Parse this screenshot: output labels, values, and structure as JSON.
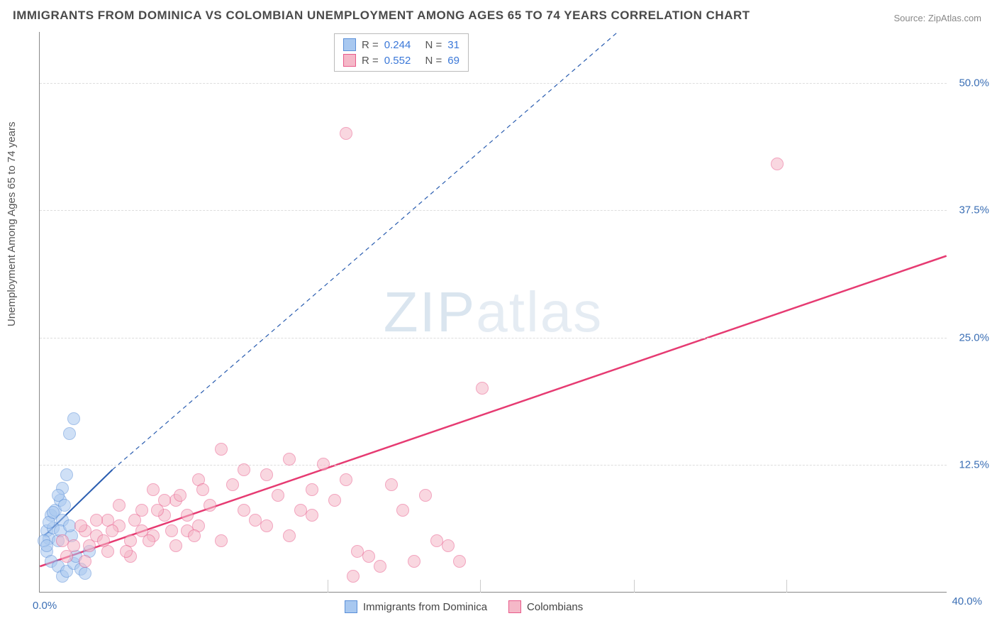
{
  "title": "IMMIGRANTS FROM DOMINICA VS COLOMBIAN UNEMPLOYMENT AMONG AGES 65 TO 74 YEARS CORRELATION CHART",
  "source_label": "Source: ZipAtlas.com",
  "y_axis_label": "Unemployment Among Ages 65 to 74 years",
  "watermark_bold": "ZIP",
  "watermark_thin": "atlas",
  "chart": {
    "type": "scatter",
    "xlim": [
      0,
      40
    ],
    "ylim": [
      0,
      55
    ],
    "x_ticks": [
      0,
      40
    ],
    "x_tick_labels": [
      "0.0%",
      "40.0%"
    ],
    "x_minor_ticks": [
      12.7,
      19.4,
      26.2,
      32.9
    ],
    "y_ticks": [
      12.5,
      25.0,
      37.5,
      50.0
    ],
    "y_tick_labels": [
      "12.5%",
      "25.0%",
      "37.5%",
      "50.0%"
    ],
    "background_color": "#ffffff",
    "grid_color": "#dddddd",
    "axis_color": "#888888",
    "marker_radius": 9,
    "marker_stroke_width": 1.5,
    "series": [
      {
        "name": "Immigrants from Dominica",
        "fill": "#a8c8f0",
        "stroke": "#5a8fd8",
        "fill_opacity": 0.55,
        "R": "0.244",
        "N": "31",
        "trend": {
          "x1": 0.2,
          "y1": 5.5,
          "x2": 3.2,
          "y2": 12.0,
          "ext_x2": 25.5,
          "ext_y2": 55,
          "color": "#2a5db0",
          "width": 2,
          "dash": "6,5"
        },
        "points": [
          [
            0.3,
            6.0
          ],
          [
            0.4,
            5.2
          ],
          [
            0.5,
            7.5
          ],
          [
            0.6,
            6.3
          ],
          [
            0.7,
            8.0
          ],
          [
            0.8,
            5.0
          ],
          [
            0.9,
            9.0
          ],
          [
            1.0,
            10.2
          ],
          [
            1.0,
            7.0
          ],
          [
            1.2,
            11.5
          ],
          [
            1.3,
            15.5
          ],
          [
            1.4,
            5.5
          ],
          [
            1.5,
            17.0
          ],
          [
            0.3,
            4.0
          ],
          [
            0.5,
            3.0
          ],
          [
            0.8,
            2.5
          ],
          [
            1.0,
            1.5
          ],
          [
            1.2,
            2.0
          ],
          [
            1.5,
            2.8
          ],
          [
            0.4,
            6.8
          ],
          [
            0.6,
            7.8
          ],
          [
            0.8,
            9.5
          ],
          [
            0.9,
            6.0
          ],
          [
            1.1,
            8.5
          ],
          [
            1.3,
            6.5
          ],
          [
            1.6,
            3.5
          ],
          [
            1.8,
            2.2
          ],
          [
            2.0,
            1.8
          ],
          [
            2.2,
            4.0
          ],
          [
            0.2,
            5.0
          ],
          [
            0.3,
            4.5
          ]
        ]
      },
      {
        "name": "Colombians",
        "fill": "#f5b8c8",
        "stroke": "#e85a8a",
        "fill_opacity": 0.55,
        "R": "0.552",
        "N": "69",
        "trend": {
          "x1": 0,
          "y1": 2.5,
          "x2": 40,
          "y2": 33.0,
          "color": "#e63b72",
          "width": 2.5,
          "dash": null
        },
        "points": [
          [
            1.0,
            5.0
          ],
          [
            1.5,
            4.5
          ],
          [
            2.0,
            6.0
          ],
          [
            2.5,
            5.5
          ],
          [
            3.0,
            7.0
          ],
          [
            3.5,
            6.5
          ],
          [
            4.0,
            5.0
          ],
          [
            4.5,
            8.0
          ],
          [
            5.0,
            10.0
          ],
          [
            5.5,
            7.5
          ],
          [
            6.0,
            9.0
          ],
          [
            6.5,
            6.0
          ],
          [
            7.0,
            11.0
          ],
          [
            7.5,
            8.5
          ],
          [
            8.0,
            14.0
          ],
          [
            8.5,
            10.5
          ],
          [
            9.0,
            12.0
          ],
          [
            9.5,
            7.0
          ],
          [
            10.0,
            11.5
          ],
          [
            10.5,
            9.5
          ],
          [
            11.0,
            13.0
          ],
          [
            11.5,
            8.0
          ],
          [
            12.0,
            10.0
          ],
          [
            12.5,
            12.5
          ],
          [
            13.0,
            9.0
          ],
          [
            13.5,
            11.0
          ],
          [
            14.0,
            4.0
          ],
          [
            14.5,
            3.5
          ],
          [
            15.0,
            2.5
          ],
          [
            15.5,
            10.5
          ],
          [
            16.0,
            8.0
          ],
          [
            16.5,
            3.0
          ],
          [
            17.0,
            9.5
          ],
          [
            17.5,
            5.0
          ],
          [
            18.0,
            4.5
          ],
          [
            18.5,
            3.0
          ],
          [
            13.5,
            45.0
          ],
          [
            19.5,
            20.0
          ],
          [
            32.5,
            42.0
          ],
          [
            2.0,
            3.0
          ],
          [
            3.0,
            4.0
          ],
          [
            4.0,
            3.5
          ],
          [
            5.0,
            5.5
          ],
          [
            6.0,
            4.5
          ],
          [
            7.0,
            6.5
          ],
          [
            8.0,
            5.0
          ],
          [
            9.0,
            8.0
          ],
          [
            10.0,
            6.5
          ],
          [
            11.0,
            5.5
          ],
          [
            12.0,
            7.5
          ],
          [
            2.5,
            7.0
          ],
          [
            3.5,
            8.5
          ],
          [
            4.5,
            6.0
          ],
          [
            5.5,
            9.0
          ],
          [
            6.5,
            7.5
          ],
          [
            1.2,
            3.5
          ],
          [
            1.8,
            6.5
          ],
          [
            2.2,
            4.5
          ],
          [
            2.8,
            5.0
          ],
          [
            3.2,
            6.0
          ],
          [
            3.8,
            4.0
          ],
          [
            4.2,
            7.0
          ],
          [
            4.8,
            5.0
          ],
          [
            5.2,
            8.0
          ],
          [
            5.8,
            6.0
          ],
          [
            6.2,
            9.5
          ],
          [
            6.8,
            5.5
          ],
          [
            7.2,
            10.0
          ],
          [
            13.8,
            1.5
          ]
        ]
      }
    ]
  },
  "legend_top": {
    "rows": [
      {
        "swatch_fill": "#a8c8f0",
        "swatch_stroke": "#5a8fd8",
        "r_label": "R =",
        "r_val": "0.244",
        "n_label": "N =",
        "n_val": "31"
      },
      {
        "swatch_fill": "#f5b8c8",
        "swatch_stroke": "#e85a8a",
        "r_label": "R =",
        "r_val": "0.552",
        "n_label": "N =",
        "n_val": "69"
      }
    ]
  },
  "legend_bottom": {
    "items": [
      {
        "swatch_fill": "#a8c8f0",
        "swatch_stroke": "#5a8fd8",
        "label": "Immigrants from Dominica"
      },
      {
        "swatch_fill": "#f5b8c8",
        "swatch_stroke": "#e85a8a",
        "label": "Colombians"
      }
    ]
  }
}
